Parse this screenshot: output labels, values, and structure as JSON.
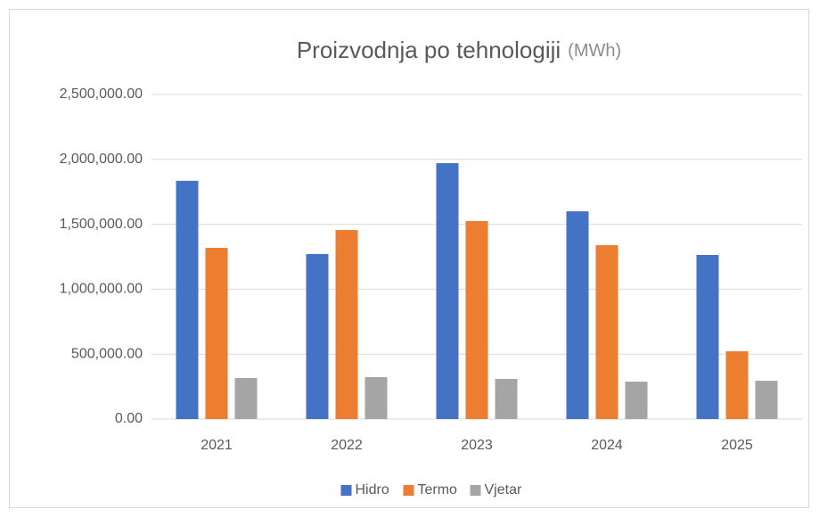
{
  "chart_data": {
    "type": "bar",
    "title": "Proizvodnja po tehnologiji",
    "title_unit": "(MWh)",
    "categories": [
      "2021",
      "2022",
      "2023",
      "2024",
      "2025"
    ],
    "series": [
      {
        "name": "Hidro",
        "color": "#4472c4",
        "values": [
          1835000,
          1271000,
          1971000,
          1600000,
          1264000
        ]
      },
      {
        "name": "Termo",
        "color": "#ed7d31",
        "values": [
          1319000,
          1456000,
          1525000,
          1339000,
          522000
        ]
      },
      {
        "name": "Vjetar",
        "color": "#a5a5a5",
        "values": [
          316000,
          323000,
          309000,
          288000,
          295000
        ]
      }
    ],
    "ylim": [
      0,
      2500000
    ],
    "yticks": [
      {
        "value": 0,
        "label": "0.00"
      },
      {
        "value": 500000,
        "label": "500,000.00"
      },
      {
        "value": 1000000,
        "label": "1,000,000.00"
      },
      {
        "value": 1500000,
        "label": "1,500,000.00"
      },
      {
        "value": 2000000,
        "label": "2,000,000.00"
      },
      {
        "value": 2500000,
        "label": "2,500,000.00"
      }
    ],
    "grid": true,
    "legend": "bottom"
  }
}
